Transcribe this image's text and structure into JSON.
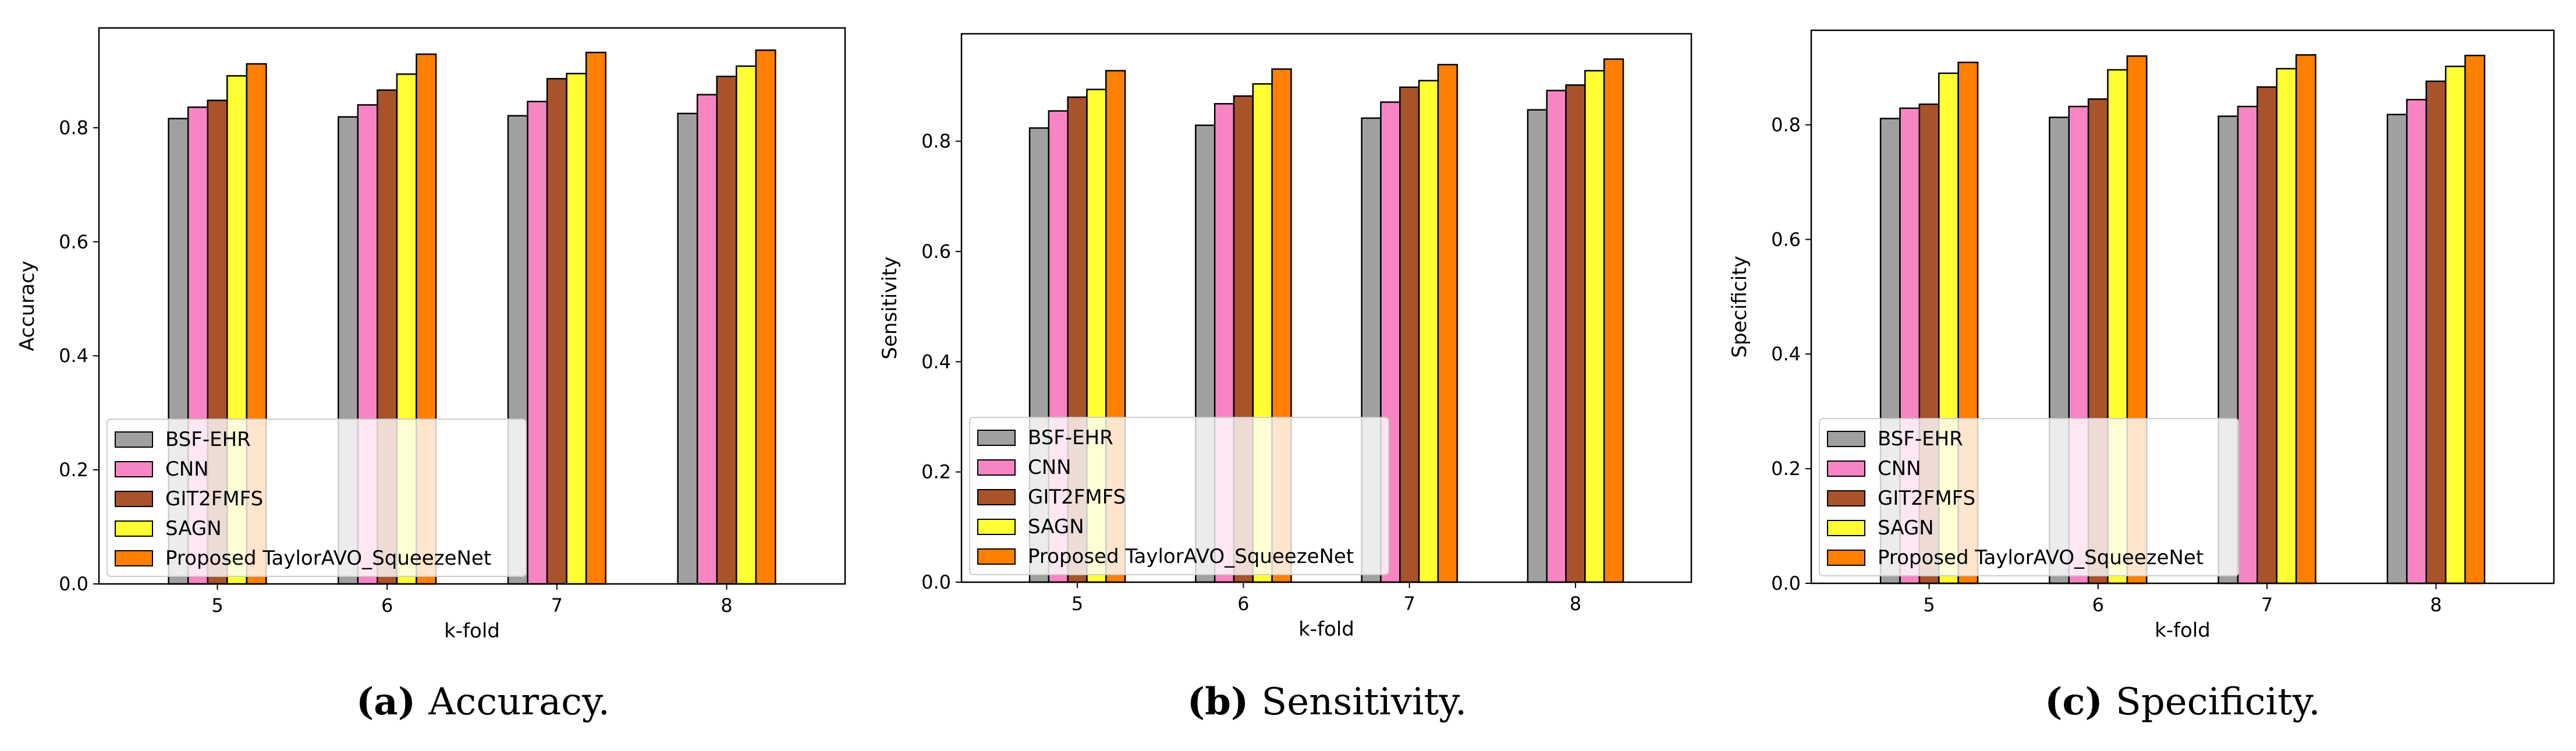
{
  "colors": {
    "BSF-EHR": "#a0a0a0",
    "CNN": "#f785c4",
    "GIT2FMFS": "#a9532a",
    "SAGN": "#ffff33",
    "Proposed TaylorAVO_SqueezeNet": "#ff7f00"
  },
  "chart_data": [
    {
      "type": "bar",
      "title": "",
      "xlabel": "k-fold",
      "ylabel": "Accuracy",
      "ylim": [
        0,
        0.975
      ],
      "yticks": [
        "0.0",
        "0.2",
        "0.4",
        "0.6",
        "0.8"
      ],
      "categories": [
        "5",
        "6",
        "7",
        "8"
      ],
      "legend_position": "lower-left",
      "series": [
        {
          "name": "BSF-EHR",
          "values": [
            0.816,
            0.819,
            0.821,
            0.825
          ]
        },
        {
          "name": "CNN",
          "values": [
            0.836,
            0.84,
            0.846,
            0.858
          ]
        },
        {
          "name": "GIT2FMFS",
          "values": [
            0.848,
            0.866,
            0.886,
            0.89
          ]
        },
        {
          "name": "SAGN",
          "values": [
            0.891,
            0.894,
            0.895,
            0.908
          ]
        },
        {
          "name": "Proposed TaylorAVO_SqueezeNet",
          "values": [
            0.912,
            0.929,
            0.932,
            0.936
          ]
        }
      ],
      "caption": {
        "letter": "(a)",
        "text": "Accuracy."
      }
    },
    {
      "type": "bar",
      "title": "",
      "xlabel": "k-fold",
      "ylabel": "Sensitivity",
      "ylim": [
        0,
        0.995
      ],
      "yticks": [
        "0.0",
        "0.2",
        "0.4",
        "0.6",
        "0.8"
      ],
      "categories": [
        "5",
        "6",
        "7",
        "8"
      ],
      "legend_position": "lower-left",
      "series": [
        {
          "name": "BSF-EHR",
          "values": [
            0.824,
            0.829,
            0.842,
            0.857
          ]
        },
        {
          "name": "CNN",
          "values": [
            0.855,
            0.868,
            0.871,
            0.892
          ]
        },
        {
          "name": "GIT2FMFS",
          "values": [
            0.88,
            0.882,
            0.898,
            0.902
          ]
        },
        {
          "name": "SAGN",
          "values": [
            0.894,
            0.904,
            0.91,
            0.928
          ]
        },
        {
          "name": "Proposed TaylorAVO_SqueezeNet",
          "values": [
            0.928,
            0.931,
            0.939,
            0.949
          ]
        }
      ],
      "caption": {
        "letter": "(b)",
        "text": "Sensitivity."
      }
    },
    {
      "type": "bar",
      "title": "",
      "xlabel": "k-fold",
      "ylabel": "Specificity",
      "ylim": [
        0,
        0.965
      ],
      "yticks": [
        "0.0",
        "0.2",
        "0.4",
        "0.6",
        "0.8"
      ],
      "categories": [
        "5",
        "6",
        "7",
        "8"
      ],
      "legend_position": "lower-left",
      "series": [
        {
          "name": "BSF-EHR",
          "values": [
            0.811,
            0.813,
            0.815,
            0.818
          ]
        },
        {
          "name": "CNN",
          "values": [
            0.829,
            0.832,
            0.832,
            0.844
          ]
        },
        {
          "name": "GIT2FMFS",
          "values": [
            0.836,
            0.845,
            0.866,
            0.876
          ]
        },
        {
          "name": "SAGN",
          "values": [
            0.89,
            0.896,
            0.898,
            0.902
          ]
        },
        {
          "name": "Proposed TaylorAVO_SqueezeNet",
          "values": [
            0.909,
            0.92,
            0.922,
            0.921
          ]
        }
      ],
      "caption": {
        "letter": "(c)",
        "text": "Specificity."
      }
    }
  ]
}
